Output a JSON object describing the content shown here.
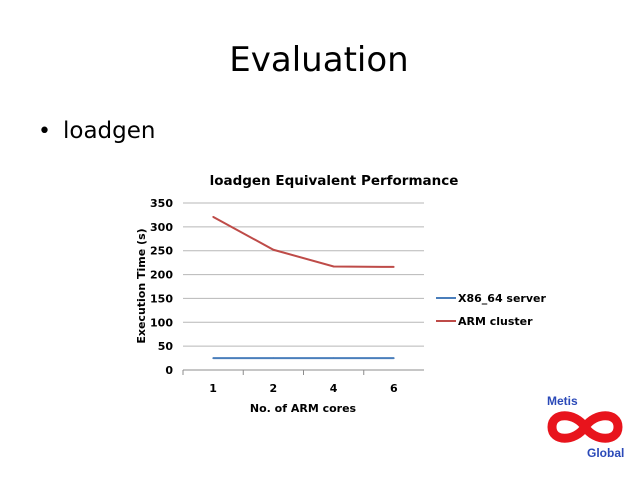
{
  "slide": {
    "title": "Evaluation",
    "bullet": "loadgen"
  },
  "chart_data": {
    "type": "line",
    "title": "loadgen Equivalent Performance",
    "xlabel": "No. of ARM cores",
    "ylabel": "Execution Time (s)",
    "categories": [
      "1",
      "2",
      "4",
      "6"
    ],
    "ylim": [
      0,
      350
    ],
    "yticks": [
      0,
      50,
      100,
      150,
      200,
      250,
      300,
      350
    ],
    "grid": true,
    "legend_position": "right",
    "series": [
      {
        "name": "X86_64 server",
        "values": [
          25,
          25,
          25,
          25
        ],
        "color": "#4a7ebb"
      },
      {
        "name": "ARM cluster",
        "values": [
          321,
          252,
          217,
          216
        ],
        "color": "#be4b48"
      }
    ]
  },
  "logo": {
    "top_text": "Metis",
    "bottom_text": "Global",
    "color": "#e8141c",
    "text_color": "#2a49b8",
    "icon": "infinity-icon"
  }
}
